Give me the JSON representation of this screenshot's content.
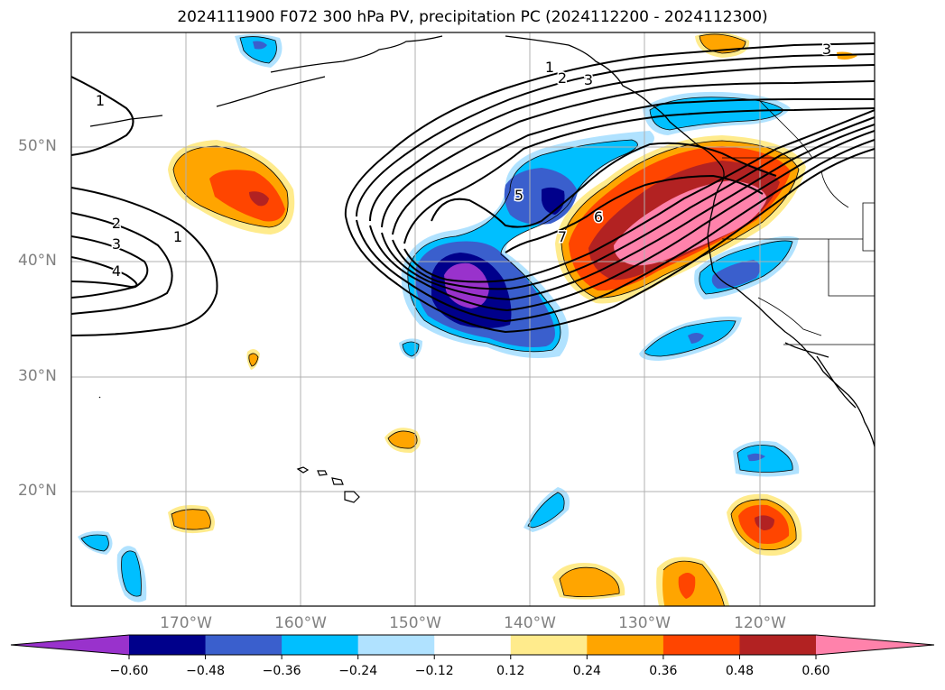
{
  "title": "2024111900 F072 300 hPa PV, precipitation PC (2024112200 - 2024112300)",
  "map": {
    "projection": "lat-lon",
    "lon_range": [
      -180,
      -110
    ],
    "lat_range": [
      10,
      60
    ],
    "gridlines": true,
    "lat_labels": [
      {
        "lat": 50,
        "text": "50°N"
      },
      {
        "lat": 40,
        "text": "40°N"
      },
      {
        "lat": 30,
        "text": "30°N"
      },
      {
        "lat": 20,
        "text": "20°N"
      }
    ],
    "lon_labels": [
      {
        "lon": -170,
        "text": "170°W"
      },
      {
        "lon": -160,
        "text": "160°W"
      },
      {
        "lon": -150,
        "text": "150°W"
      },
      {
        "lon": -140,
        "text": "140°W"
      },
      {
        "lon": -130,
        "text": "130°W"
      },
      {
        "lon": -120,
        "text": "120°W"
      }
    ],
    "pv_contour_labels": [
      {
        "text": "1",
        "lon": -172.8,
        "lat": 54.5
      },
      {
        "text": "2",
        "lon": -173.9,
        "lat": 43.3
      },
      {
        "text": "3",
        "lon": -173.9,
        "lat": 41.5
      },
      {
        "text": "4",
        "lon": -173.9,
        "lat": 39.2
      },
      {
        "text": "1",
        "lon": -168.6,
        "lat": 42.1
      },
      {
        "text": "5",
        "lon": -141.0,
        "lat": 46.2
      },
      {
        "text": "7",
        "lon": -137.0,
        "lat": 42.3
      },
      {
        "text": "6",
        "lon": -134.0,
        "lat": 44.0
      },
      {
        "text": "1",
        "lon": -135.6,
        "lat": 56.4
      },
      {
        "text": "2",
        "lon": -134.6,
        "lat": 55.5
      },
      {
        "text": "3",
        "lon": -133.6,
        "lat": 54.8
      },
      {
        "text": "3",
        "lon": -113.6,
        "lat": 59.1
      }
    ],
    "places": [
      "Gulf of Alaska",
      "Aleutian Islands",
      "Hawaiian Islands",
      "Pacific Northwest coast",
      "California",
      "Baja California"
    ]
  },
  "colorbar": {
    "levels": [
      -0.6,
      -0.48,
      -0.36,
      -0.24,
      -0.12,
      0.12,
      0.24,
      0.36,
      0.48,
      0.6
    ],
    "tick_labels": [
      "−0.60",
      "−0.48",
      "−0.36",
      "−0.24",
      "−0.12",
      "0.12",
      "0.24",
      "0.36",
      "0.48",
      "0.60"
    ],
    "colors": [
      "#9932cc",
      "#00008b",
      "#3a5fcd",
      "#00bfff",
      "#b0e2ff",
      "#ffffff",
      "#ffeb8c",
      "#ffa500",
      "#ff4500",
      "#b22222",
      "#ff82ab"
    ],
    "extend": "both"
  }
}
